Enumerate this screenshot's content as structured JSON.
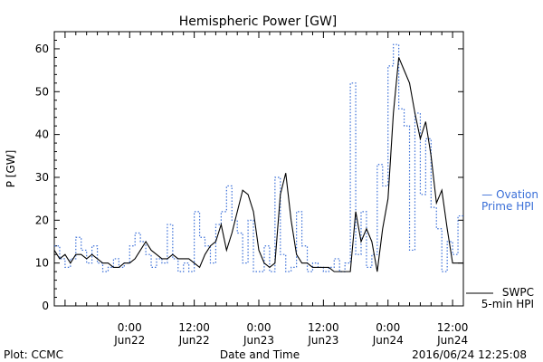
{
  "chart_data": {
    "type": "line",
    "title": "Hemispheric Power [GW]",
    "xlabel": "Date and Time",
    "ylabel": "P [GW]",
    "xlim": [
      "2016-06-21T10:00",
      "2016-06-24T14:00"
    ],
    "ylim": [
      0,
      64
    ],
    "y_ticks": [
      0,
      10,
      20,
      30,
      40,
      50,
      60
    ],
    "x_ticks": [
      {
        "t": "2016-06-22T00:00",
        "line1": "0:00",
        "line2": "Jun22"
      },
      {
        "t": "2016-06-22T12:00",
        "line1": "12:00",
        "line2": "Jun22"
      },
      {
        "t": "2016-06-23T00:00",
        "line1": "0:00",
        "line2": "Jun23"
      },
      {
        "t": "2016-06-23T12:00",
        "line1": "12:00",
        "line2": "Jun23"
      },
      {
        "t": "2016-06-24T00:00",
        "line1": "0:00",
        "line2": "Jun24"
      },
      {
        "t": "2016-06-24T12:00",
        "line1": "12:00",
        "line2": "Jun24"
      }
    ],
    "series": [
      {
        "name": "Ovation Prime HPI",
        "style": "dotted-step",
        "color": "#3a6fd8",
        "points": [
          [
            "2016-06-21T10:00",
            14
          ],
          [
            "2016-06-21T11:00",
            11
          ],
          [
            "2016-06-21T12:00",
            9
          ],
          [
            "2016-06-21T13:00",
            11
          ],
          [
            "2016-06-21T14:00",
            16
          ],
          [
            "2016-06-21T15:00",
            13
          ],
          [
            "2016-06-21T16:00",
            10
          ],
          [
            "2016-06-21T17:00",
            14
          ],
          [
            "2016-06-21T18:00",
            10
          ],
          [
            "2016-06-21T19:00",
            8
          ],
          [
            "2016-06-21T20:00",
            9
          ],
          [
            "2016-06-21T21:00",
            11
          ],
          [
            "2016-06-21T22:00",
            9
          ],
          [
            "2016-06-21T23:00",
            10
          ],
          [
            "2016-06-22T00:00",
            14
          ],
          [
            "2016-06-22T01:00",
            17
          ],
          [
            "2016-06-22T02:00",
            15
          ],
          [
            "2016-06-22T03:00",
            12
          ],
          [
            "2016-06-22T04:00",
            9
          ],
          [
            "2016-06-22T05:00",
            11
          ],
          [
            "2016-06-22T06:00",
            10
          ],
          [
            "2016-06-22T07:00",
            19
          ],
          [
            "2016-06-22T08:00",
            11
          ],
          [
            "2016-06-22T09:00",
            8
          ],
          [
            "2016-06-22T10:00",
            10
          ],
          [
            "2016-06-22T11:00",
            8
          ],
          [
            "2016-06-22T12:00",
            22
          ],
          [
            "2016-06-22T13:00",
            16
          ],
          [
            "2016-06-22T14:00",
            14
          ],
          [
            "2016-06-22T15:00",
            10
          ],
          [
            "2016-06-22T16:00",
            19
          ],
          [
            "2016-06-22T17:00",
            22
          ],
          [
            "2016-06-22T18:00",
            28
          ],
          [
            "2016-06-22T19:00",
            20
          ],
          [
            "2016-06-22T20:00",
            17
          ],
          [
            "2016-06-22T21:00",
            10
          ],
          [
            "2016-06-22T22:00",
            20
          ],
          [
            "2016-06-22T23:00",
            8
          ],
          [
            "2016-06-23T00:00",
            8
          ],
          [
            "2016-06-23T01:00",
            14
          ],
          [
            "2016-06-23T02:00",
            8
          ],
          [
            "2016-06-23T03:00",
            30
          ],
          [
            "2016-06-23T04:00",
            12
          ],
          [
            "2016-06-23T05:00",
            8
          ],
          [
            "2016-06-23T06:00",
            9
          ],
          [
            "2016-06-23T07:00",
            22
          ],
          [
            "2016-06-23T08:00",
            14
          ],
          [
            "2016-06-23T09:00",
            8
          ],
          [
            "2016-06-23T10:00",
            10
          ],
          [
            "2016-06-23T11:00",
            9
          ],
          [
            "2016-06-23T12:00",
            8
          ],
          [
            "2016-06-23T13:00",
            9
          ],
          [
            "2016-06-23T14:00",
            11
          ],
          [
            "2016-06-23T15:00",
            8
          ],
          [
            "2016-06-23T16:00",
            10
          ],
          [
            "2016-06-23T17:00",
            52
          ],
          [
            "2016-06-23T18:00",
            12
          ],
          [
            "2016-06-23T19:00",
            22
          ],
          [
            "2016-06-23T20:00",
            9
          ],
          [
            "2016-06-23T21:00",
            12
          ],
          [
            "2016-06-23T22:00",
            33
          ],
          [
            "2016-06-23T23:00",
            28
          ],
          [
            "2016-06-24T00:00",
            56
          ],
          [
            "2016-06-24T01:00",
            61
          ],
          [
            "2016-06-24T02:00",
            46
          ],
          [
            "2016-06-24T03:00",
            42
          ],
          [
            "2016-06-24T04:00",
            13
          ],
          [
            "2016-06-24T05:00",
            45
          ],
          [
            "2016-06-24T06:00",
            26
          ],
          [
            "2016-06-24T07:00",
            39
          ],
          [
            "2016-06-24T08:00",
            23
          ],
          [
            "2016-06-24T09:00",
            18
          ],
          [
            "2016-06-24T10:00",
            8
          ],
          [
            "2016-06-24T11:00",
            15
          ],
          [
            "2016-06-24T12:00",
            12
          ],
          [
            "2016-06-24T13:00",
            21
          ],
          [
            "2016-06-24T14:00",
            21
          ]
        ]
      },
      {
        "name": "SWPC 5-min HPI",
        "style": "solid",
        "color": "#000000",
        "points": [
          [
            "2016-06-21T10:00",
            13
          ],
          [
            "2016-06-21T11:00",
            11
          ],
          [
            "2016-06-21T12:00",
            12
          ],
          [
            "2016-06-21T13:00",
            10
          ],
          [
            "2016-06-21T14:00",
            12
          ],
          [
            "2016-06-21T15:00",
            12
          ],
          [
            "2016-06-21T16:00",
            11
          ],
          [
            "2016-06-21T17:00",
            12
          ],
          [
            "2016-06-21T18:00",
            11
          ],
          [
            "2016-06-21T19:00",
            10
          ],
          [
            "2016-06-21T20:00",
            10
          ],
          [
            "2016-06-21T21:00",
            9
          ],
          [
            "2016-06-21T22:00",
            9
          ],
          [
            "2016-06-21T23:00",
            10
          ],
          [
            "2016-06-22T00:00",
            10
          ],
          [
            "2016-06-22T01:00",
            11
          ],
          [
            "2016-06-22T02:00",
            13
          ],
          [
            "2016-06-22T03:00",
            15
          ],
          [
            "2016-06-22T04:00",
            13
          ],
          [
            "2016-06-22T05:00",
            12
          ],
          [
            "2016-06-22T06:00",
            11
          ],
          [
            "2016-06-22T07:00",
            11
          ],
          [
            "2016-06-22T08:00",
            12
          ],
          [
            "2016-06-22T09:00",
            11
          ],
          [
            "2016-06-22T10:00",
            11
          ],
          [
            "2016-06-22T11:00",
            11
          ],
          [
            "2016-06-22T12:00",
            10
          ],
          [
            "2016-06-22T13:00",
            9
          ],
          [
            "2016-06-22T14:00",
            12
          ],
          [
            "2016-06-22T15:00",
            14
          ],
          [
            "2016-06-22T16:00",
            15
          ],
          [
            "2016-06-22T17:00",
            19
          ],
          [
            "2016-06-22T18:00",
            13
          ],
          [
            "2016-06-22T19:00",
            17
          ],
          [
            "2016-06-22T20:00",
            22
          ],
          [
            "2016-06-22T21:00",
            27
          ],
          [
            "2016-06-22T22:00",
            26
          ],
          [
            "2016-06-22T23:00",
            22
          ],
          [
            "2016-06-23T00:00",
            13
          ],
          [
            "2016-06-23T01:00",
            10
          ],
          [
            "2016-06-23T02:00",
            9
          ],
          [
            "2016-06-23T03:00",
            10
          ],
          [
            "2016-06-23T04:00",
            26
          ],
          [
            "2016-06-23T05:00",
            31
          ],
          [
            "2016-06-23T06:00",
            20
          ],
          [
            "2016-06-23T07:00",
            12
          ],
          [
            "2016-06-23T08:00",
            10
          ],
          [
            "2016-06-23T09:00",
            10
          ],
          [
            "2016-06-23T10:00",
            9
          ],
          [
            "2016-06-23T11:00",
            9
          ],
          [
            "2016-06-23T12:00",
            9
          ],
          [
            "2016-06-23T13:00",
            9
          ],
          [
            "2016-06-23T14:00",
            8
          ],
          [
            "2016-06-23T15:00",
            8
          ],
          [
            "2016-06-23T16:00",
            8
          ],
          [
            "2016-06-23T17:00",
            8
          ],
          [
            "2016-06-23T18:00",
            22
          ],
          [
            "2016-06-23T19:00",
            15
          ],
          [
            "2016-06-23T20:00",
            18
          ],
          [
            "2016-06-23T21:00",
            15
          ],
          [
            "2016-06-23T22:00",
            8
          ],
          [
            "2016-06-23T23:00",
            18
          ],
          [
            "2016-06-24T00:00",
            25
          ],
          [
            "2016-06-24T01:00",
            45
          ],
          [
            "2016-06-24T02:00",
            58
          ],
          [
            "2016-06-24T03:00",
            55
          ],
          [
            "2016-06-24T04:00",
            52
          ],
          [
            "2016-06-24T05:00",
            45
          ],
          [
            "2016-06-24T06:00",
            39
          ],
          [
            "2016-06-24T07:00",
            43
          ],
          [
            "2016-06-24T08:00",
            35
          ],
          [
            "2016-06-24T09:00",
            24
          ],
          [
            "2016-06-24T10:00",
            27
          ],
          [
            "2016-06-24T11:00",
            18
          ],
          [
            "2016-06-24T12:00",
            10
          ],
          [
            "2016-06-24T13:00",
            10
          ],
          [
            "2016-06-24T14:00",
            10
          ]
        ]
      }
    ],
    "legend": {
      "placement": "right",
      "entries": [
        {
          "line1": "— Ovation",
          "line2": "Prime HPI",
          "color": "#3a6fd8"
        },
        {
          "line1": "SWPC",
          "line2": "5-min HPI",
          "color": "#000000"
        }
      ]
    },
    "grid": false
  },
  "footer": {
    "plot_credit": "Plot: CCMC",
    "timestamp": "2016/06/24 12:25:08"
  }
}
